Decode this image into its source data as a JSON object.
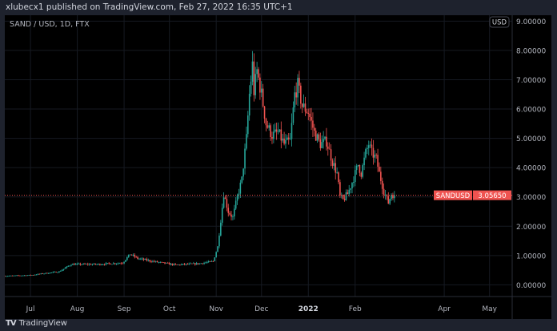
{
  "header": {
    "published": "xlubecx1 published on TradingView.com, Feb 27, 2022 16:35 UTC+1"
  },
  "symbol": "SAND / USD, 1D, FTX",
  "footer": {
    "brand": "TradingView"
  },
  "colors": {
    "up": "#26a69a",
    "down": "#ef5350",
    "bg": "#000000",
    "frame": "#1e222d"
  },
  "chart_data": {
    "type": "candlestick",
    "currency_label": "USD",
    "ylim": [
      -0.4,
      9.2
    ],
    "yticks": [
      "9.00000",
      "8.00000",
      "7.00000",
      "6.00000",
      "5.00000",
      "4.00000",
      "3.00000",
      "2.00000",
      "1.00000",
      "0.00000"
    ],
    "ytick_values": [
      9,
      8,
      7,
      6,
      5,
      4,
      3,
      2,
      1,
      0
    ],
    "xticks": [
      {
        "label": "Jul",
        "date": "2021-07-01"
      },
      {
        "label": "Aug",
        "date": "2021-08-01"
      },
      {
        "label": "Sep",
        "date": "2021-09-01"
      },
      {
        "label": "Oct",
        "date": "2021-10-01"
      },
      {
        "label": "Nov",
        "date": "2021-11-01"
      },
      {
        "label": "Dec",
        "date": "2021-12-01"
      },
      {
        "label": "2022",
        "date": "2022-01-01"
      },
      {
        "label": "Feb",
        "date": "2022-02-01"
      },
      {
        "label": "Apr",
        "date": "2022-04-01"
      },
      {
        "label": "May",
        "date": "2022-05-01"
      }
    ],
    "xrange": [
      "2021-06-14",
      "2022-05-16"
    ],
    "last_price": {
      "label": "SANDUSD",
      "value": "3.05650",
      "numeric": 3.0565
    },
    "close_keypoints": [
      [
        "2021-06-14",
        0.3
      ],
      [
        "2021-07-01",
        0.33
      ],
      [
        "2021-07-20",
        0.45
      ],
      [
        "2021-07-28",
        0.7
      ],
      [
        "2021-08-15",
        0.7
      ],
      [
        "2021-08-31",
        0.75
      ],
      [
        "2021-09-05",
        1.05
      ],
      [
        "2021-09-10",
        0.9
      ],
      [
        "2021-09-20",
        0.8
      ],
      [
        "2021-10-05",
        0.68
      ],
      [
        "2021-10-20",
        0.72
      ],
      [
        "2021-10-30",
        0.8
      ],
      [
        "2021-11-02",
        1.3
      ],
      [
        "2021-11-04",
        2.2
      ],
      [
        "2021-11-06",
        3.1
      ],
      [
        "2021-11-09",
        2.5
      ],
      [
        "2021-11-12",
        2.3
      ],
      [
        "2021-11-15",
        3.0
      ],
      [
        "2021-11-18",
        3.6
      ],
      [
        "2021-11-21",
        5.0
      ],
      [
        "2021-11-23",
        6.5
      ],
      [
        "2021-11-25",
        7.5
      ],
      [
        "2021-11-26",
        6.6
      ],
      [
        "2021-11-28",
        7.3
      ],
      [
        "2021-12-01",
        6.5
      ],
      [
        "2021-12-04",
        5.5
      ],
      [
        "2021-12-08",
        5.1
      ],
      [
        "2021-12-12",
        5.2
      ],
      [
        "2021-12-16",
        4.8
      ],
      [
        "2021-12-20",
        4.9
      ],
      [
        "2021-12-23",
        6.5
      ],
      [
        "2021-12-25",
        6.8
      ],
      [
        "2021-12-28",
        6.1
      ],
      [
        "2022-01-01",
        5.9
      ],
      [
        "2022-01-05",
        5.2
      ],
      [
        "2022-01-09",
        4.8
      ],
      [
        "2022-01-13",
        4.9
      ],
      [
        "2022-01-17",
        4.2
      ],
      [
        "2022-01-20",
        3.8
      ],
      [
        "2022-01-22",
        3.0
      ],
      [
        "2022-01-24",
        2.9
      ],
      [
        "2022-01-27",
        3.1
      ],
      [
        "2022-01-30",
        3.5
      ],
      [
        "2022-02-03",
        4.1
      ],
      [
        "2022-02-05",
        3.8
      ],
      [
        "2022-02-08",
        4.5
      ],
      [
        "2022-02-10",
        4.8
      ],
      [
        "2022-02-12",
        4.5
      ],
      [
        "2022-02-15",
        4.3
      ],
      [
        "2022-02-17",
        3.8
      ],
      [
        "2022-02-20",
        3.2
      ],
      [
        "2022-02-23",
        2.8
      ],
      [
        "2022-02-25",
        3.1
      ],
      [
        "2022-02-27",
        3.0565
      ]
    ]
  }
}
